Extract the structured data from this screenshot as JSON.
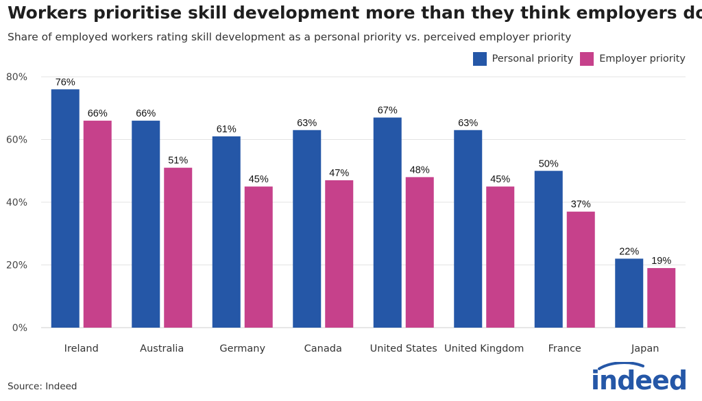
{
  "chart_data": {
    "type": "bar",
    "title": "Workers prioritise skill development more than they think employers do",
    "subtitle": "Share of employed workers rating skill development as a personal priority vs. perceived employer priority",
    "categories": [
      "Ireland",
      "Australia",
      "Germany",
      "Canada",
      "United States",
      "United Kingdom",
      "France",
      "Japan"
    ],
    "series": [
      {
        "name": "Personal priority",
        "color": "#2557a7",
        "values": [
          76,
          66,
          61,
          63,
          67,
          63,
          50,
          22
        ],
        "labels": [
          "76%",
          "66%",
          "61%",
          "63%",
          "67%",
          "63%",
          "50%",
          "22%"
        ]
      },
      {
        "name": "Employer priority",
        "color": "#c6418b",
        "values": [
          66,
          51,
          45,
          47,
          48,
          45,
          37,
          19
        ],
        "labels": [
          "66%",
          "51%",
          "45%",
          "47%",
          "48%",
          "45%",
          "37%",
          "19%"
        ]
      }
    ],
    "ylim": [
      0,
      80
    ],
    "yticks": [
      0,
      20,
      40,
      60,
      80
    ],
    "ytick_labels": [
      "0%",
      "20%",
      "40%",
      "60%",
      "80%"
    ],
    "grid": true,
    "legend_position": "top-right"
  },
  "footer": {
    "source": "Source: Indeed",
    "logo_text": "indeed",
    "logo_color": "#2557a7"
  }
}
